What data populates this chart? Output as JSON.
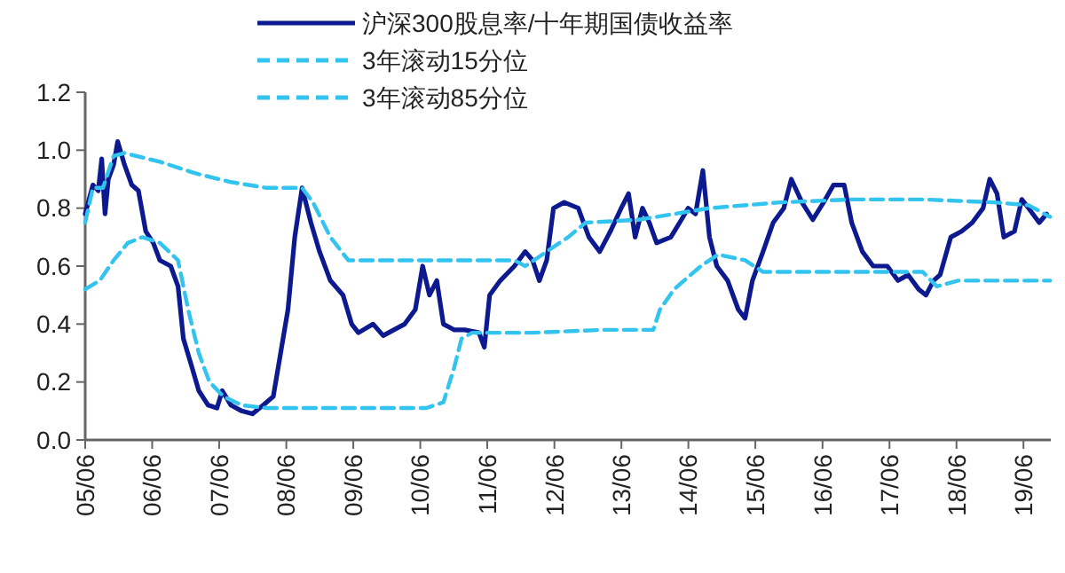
{
  "chart_data": {
    "type": "line",
    "xlim": [
      "2005-06-01",
      "2019-10-28"
    ],
    "ylim": [
      0,
      1.2
    ],
    "xticks": [
      {
        "value": "2005-06",
        "label": "05/06"
      },
      {
        "value": "2006-06",
        "label": "06/06"
      },
      {
        "value": "2007-06",
        "label": "07/06"
      },
      {
        "value": "2008-06",
        "label": "08/06"
      },
      {
        "value": "2009-06",
        "label": "09/06"
      },
      {
        "value": "2010-06",
        "label": "10/06"
      },
      {
        "value": "2011-06",
        "label": "11/06"
      },
      {
        "value": "2012-06",
        "label": "12/06"
      },
      {
        "value": "2013-06",
        "label": "13/06"
      },
      {
        "value": "2014-06",
        "label": "14/06"
      },
      {
        "value": "2015-06",
        "label": "15/06"
      },
      {
        "value": "2016-06",
        "label": "16/06"
      },
      {
        "value": "2017-06",
        "label": "17/06"
      },
      {
        "value": "2018-06",
        "label": "18/06"
      },
      {
        "value": "2019-06",
        "label": "19/06"
      }
    ],
    "yticks": [
      {
        "value": 0,
        "label": "0.0"
      },
      {
        "value": 0.2,
        "label": "0.2"
      },
      {
        "value": 0.4,
        "label": "0.4"
      },
      {
        "value": 0.6,
        "label": "0.6"
      },
      {
        "value": 0.8,
        "label": "0.8"
      },
      {
        "value": 1.0,
        "label": "1.0"
      },
      {
        "value": 1.2,
        "label": "1.2"
      }
    ],
    "grid": false,
    "legend": "top",
    "marker": "none",
    "series": [
      {
        "name": "沪深300股息率/十年期国债收益率",
        "color": "#0d1a8f",
        "line_style": "solid",
        "x": [
          "2005-06-01",
          "2005-07-13",
          "2005-08-11",
          "2005-08-30",
          "2005-09-17",
          "2005-10-05",
          "2005-11-03",
          "2005-11-25",
          "2006-01-01",
          "2006-02-10",
          "2006-03-18",
          "2006-04-27",
          "2006-06-07",
          "2006-07-13",
          "2006-09-10",
          "2006-10-20",
          "2006-11-18",
          "2007-01-04",
          "2007-02-10",
          "2007-04-02",
          "2007-05-20",
          "2007-06-18",
          "2007-08-04",
          "2007-10-02",
          "2007-11-29",
          "2008-01-27",
          "2008-03-22",
          "2008-05-01",
          "2008-06-10",
          "2008-07-17",
          "2008-08-26",
          "2008-10-13",
          "2008-11-29",
          "2009-01-27",
          "2009-04-06",
          "2009-05-23",
          "2009-06-29",
          "2009-09-17",
          "2009-11-11",
          "2010-01-08",
          "2010-03-08",
          "2010-05-05",
          "2010-06-14",
          "2010-07-21",
          "2010-08-30",
          "2010-10-05",
          "2010-12-03",
          "2011-01-30",
          "2011-04-17",
          "2011-05-16",
          "2011-06-14",
          "2011-08-11",
          "2011-10-27",
          "2011-12-25",
          "2012-02-03",
          "2012-03-11",
          "2012-04-20",
          "2012-05-27",
          "2012-07-24",
          "2012-10-09",
          "2012-12-06",
          "2013-02-03",
          "2013-04-02",
          "2013-05-31",
          "2013-07-10",
          "2013-08-15",
          "2013-09-24",
          "2013-10-31",
          "2013-12-10",
          "2014-02-25",
          "2014-04-24",
          "2014-05-31",
          "2014-07-10",
          "2014-08-19",
          "2014-09-24",
          "2014-11-03",
          "2015-01-01",
          "2015-02-28",
          "2015-04-06",
          "2015-05-16",
          "2015-07-13",
          "2015-09-06",
          "2015-11-03",
          "2015-12-14",
          "2016-02-10",
          "2016-04-09",
          "2016-06-07",
          "2016-07-31",
          "2016-09-27",
          "2016-11-07",
          "2017-01-04",
          "2017-03-04",
          "2017-05-20",
          "2017-07-17",
          "2017-09-10",
          "2017-11-07",
          "2017-12-17",
          "2018-01-27",
          "2018-03-04",
          "2018-05-01",
          "2018-06-29",
          "2018-08-26",
          "2018-10-24",
          "2018-11-29",
          "2019-01-08",
          "2019-02-14",
          "2019-04-13",
          "2019-05-23",
          "2019-06-29",
          "2019-08-26",
          "2019-10-05"
        ],
        "values": [
          0.78,
          0.88,
          0.86,
          0.97,
          0.78,
          0.9,
          0.95,
          1.03,
          0.95,
          0.88,
          0.86,
          0.72,
          0.68,
          0.62,
          0.6,
          0.53,
          0.35,
          0.25,
          0.17,
          0.12,
          0.11,
          0.17,
          0.12,
          0.1,
          0.09,
          0.12,
          0.15,
          0.3,
          0.45,
          0.7,
          0.87,
          0.75,
          0.65,
          0.55,
          0.5,
          0.4,
          0.37,
          0.4,
          0.36,
          0.38,
          0.4,
          0.45,
          0.6,
          0.5,
          0.55,
          0.4,
          0.38,
          0.38,
          0.37,
          0.32,
          0.5,
          0.55,
          0.6,
          0.65,
          0.62,
          0.55,
          0.62,
          0.8,
          0.82,
          0.8,
          0.7,
          0.65,
          0.72,
          0.8,
          0.85,
          0.7,
          0.8,
          0.75,
          0.68,
          0.7,
          0.76,
          0.8,
          0.78,
          0.93,
          0.7,
          0.6,
          0.55,
          0.45,
          0.42,
          0.55,
          0.65,
          0.75,
          0.8,
          0.9,
          0.82,
          0.76,
          0.82,
          0.88,
          0.88,
          0.75,
          0.65,
          0.6,
          0.6,
          0.55,
          0.57,
          0.52,
          0.5,
          0.55,
          0.57,
          0.7,
          0.72,
          0.75,
          0.8,
          0.9,
          0.85,
          0.7,
          0.72,
          0.83,
          0.8,
          0.75,
          0.78
        ]
      },
      {
        "name": "3年滚动15分位",
        "color": "#33c3ef",
        "line_style": "dashed",
        "x": [
          "2005-06-01",
          "2005-08-19",
          "2005-11-03",
          "2006-01-19",
          "2006-04-09",
          "2006-07-13",
          "2006-10-20",
          "2006-12-14",
          "2007-02-10",
          "2007-04-09",
          "2007-06-25",
          "2007-10-02",
          "2008-02-14",
          "2009-06-10",
          "2010-07-02",
          "2010-10-05",
          "2010-12-03",
          "2011-01-12",
          "2011-03-11",
          "2012-02-03",
          "2013-02-21",
          "2013-11-22",
          "2013-12-28",
          "2014-03-15",
          "2014-08-08",
          "2014-11-10",
          "2015-04-06",
          "2015-07-13",
          "2016-11-07",
          "2017-11-29",
          "2018-02-14",
          "2018-06-10",
          "2019-10-24"
        ],
        "values": [
          0.52,
          0.55,
          0.62,
          0.68,
          0.7,
          0.68,
          0.62,
          0.45,
          0.3,
          0.2,
          0.15,
          0.12,
          0.11,
          0.11,
          0.11,
          0.13,
          0.25,
          0.35,
          0.37,
          0.37,
          0.38,
          0.38,
          0.45,
          0.52,
          0.6,
          0.64,
          0.62,
          0.58,
          0.58,
          0.58,
          0.53,
          0.55,
          0.55
        ]
      },
      {
        "name": "3年滚动85分位",
        "color": "#33c3ef",
        "line_style": "dashed",
        "x": [
          "2005-06-01",
          "2005-07-13",
          "2005-09-06",
          "2005-11-03",
          "2006-01-01",
          "2006-07-13",
          "2007-01-23",
          "2007-08-04",
          "2008-02-14",
          "2008-08-26",
          "2008-10-24",
          "2009-01-27",
          "2009-05-05",
          "2010-07-02",
          "2011-10-27",
          "2011-12-25",
          "2012-08-15",
          "2012-11-18",
          "2013-09-02",
          "2014-09-24",
          "2015-10-16",
          "2016-11-07",
          "2017-11-29",
          "2018-12-21",
          "2019-06-29",
          "2019-10-24"
        ],
        "values": [
          0.75,
          0.87,
          0.87,
          0.98,
          0.99,
          0.96,
          0.92,
          0.89,
          0.87,
          0.87,
          0.82,
          0.7,
          0.62,
          0.62,
          0.62,
          0.6,
          0.7,
          0.75,
          0.76,
          0.8,
          0.82,
          0.83,
          0.83,
          0.82,
          0.81,
          0.77
        ]
      }
    ]
  }
}
